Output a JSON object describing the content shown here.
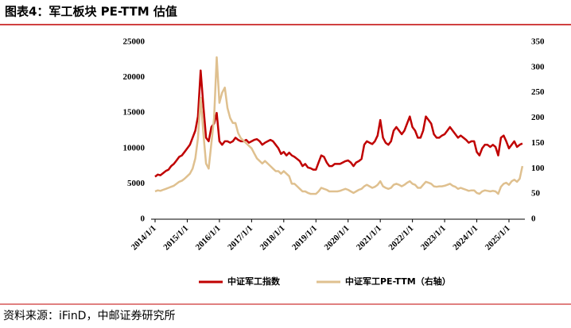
{
  "chart_data": {
    "type": "line",
    "title": "图表4：军工板块 PE-TTM 估值",
    "source": "资料来源：iFinD，中邮证券研究所",
    "x": [
      "2014/1/1",
      "2014/2/1",
      "2014/3/1",
      "2014/4/1",
      "2014/5/1",
      "2014/6/1",
      "2014/7/1",
      "2014/8/1",
      "2014/9/1",
      "2014/10/1",
      "2014/11/1",
      "2014/12/1",
      "2015/1/1",
      "2015/2/1",
      "2015/3/1",
      "2015/4/1",
      "2015/5/1",
      "2015/6/1",
      "2015/7/1",
      "2015/8/1",
      "2015/9/1",
      "2015/10/1",
      "2015/11/1",
      "2015/12/1",
      "2016/1/1",
      "2016/2/1",
      "2016/3/1",
      "2016/4/1",
      "2016/5/1",
      "2016/6/1",
      "2016/7/1",
      "2016/8/1",
      "2016/9/1",
      "2016/10/1",
      "2016/11/1",
      "2016/12/1",
      "2017/1/1",
      "2017/2/1",
      "2017/3/1",
      "2017/4/1",
      "2017/5/1",
      "2017/6/1",
      "2017/7/1",
      "2017/8/1",
      "2017/9/1",
      "2017/10/1",
      "2017/11/1",
      "2017/12/1",
      "2018/1/1",
      "2018/2/1",
      "2018/3/1",
      "2018/4/1",
      "2018/5/1",
      "2018/6/1",
      "2018/7/1",
      "2018/8/1",
      "2018/9/1",
      "2018/10/1",
      "2018/11/1",
      "2018/12/1",
      "2019/1/1",
      "2019/2/1",
      "2019/3/1",
      "2019/4/1",
      "2019/5/1",
      "2019/6/1",
      "2019/7/1",
      "2019/8/1",
      "2019/9/1",
      "2019/10/1",
      "2019/11/1",
      "2019/12/1",
      "2020/1/1",
      "2020/2/1",
      "2020/3/1",
      "2020/4/1",
      "2020/5/1",
      "2020/6/1",
      "2020/7/1",
      "2020/8/1",
      "2020/9/1",
      "2020/10/1",
      "2020/11/1",
      "2020/12/1",
      "2021/1/1",
      "2021/2/1",
      "2021/3/1",
      "2021/4/1",
      "2021/5/1",
      "2021/6/1",
      "2021/7/1",
      "2021/8/1",
      "2021/9/1",
      "2021/10/1",
      "2021/11/1",
      "2021/12/1",
      "2022/1/1",
      "2022/2/1",
      "2022/3/1",
      "2022/4/1",
      "2022/5/1",
      "2022/6/1",
      "2022/7/1",
      "2022/8/1",
      "2022/9/1",
      "2022/10/1",
      "2022/11/1",
      "2022/12/1",
      "2023/1/1",
      "2023/2/1",
      "2023/3/1",
      "2023/4/1",
      "2023/5/1",
      "2023/6/1",
      "2023/7/1",
      "2023/8/1",
      "2023/9/1",
      "2023/10/1",
      "2023/11/1",
      "2023/12/1",
      "2024/1/1",
      "2024/2/1",
      "2024/3/1",
      "2024/4/1",
      "2024/5/1",
      "2024/6/1",
      "2024/7/1",
      "2024/8/1",
      "2024/9/1",
      "2024/10/1",
      "2024/11/1",
      "2024/12/1",
      "2025/1/1",
      "2025/2/1",
      "2025/3/1",
      "2025/4/1",
      "2025/5/1",
      "2025/6/1"
    ],
    "series": [
      {
        "name": "中证军工指数",
        "color": "#c00000",
        "axis": "y",
        "values": [
          6000,
          6300,
          6200,
          6500,
          6800,
          7000,
          7500,
          7800,
          8300,
          8800,
          9000,
          9500,
          10000,
          10500,
          11500,
          12500,
          14500,
          21000,
          16000,
          11500,
          11000,
          13000,
          13500,
          15000,
          11000,
          10500,
          11000,
          11000,
          10800,
          11000,
          11500,
          11200,
          11000,
          11000,
          11200,
          10800,
          11000,
          11200,
          11300,
          11000,
          10500,
          10800,
          11000,
          11200,
          11000,
          10500,
          10000,
          9200,
          9500,
          9000,
          9400,
          9000,
          8800,
          8500,
          8200,
          7500,
          7800,
          7300,
          7200,
          7000,
          7000,
          8000,
          9000,
          8800,
          8000,
          7500,
          7500,
          7800,
          7800,
          7800,
          8000,
          8200,
          8300,
          8000,
          7500,
          8000,
          8200,
          8500,
          10500,
          11000,
          10800,
          10600,
          11000,
          11800,
          14000,
          11500,
          10800,
          10500,
          11000,
          12500,
          13000,
          12500,
          12000,
          12500,
          13500,
          14500,
          13000,
          12500,
          11500,
          11500,
          12500,
          14500,
          14000,
          13500,
          12000,
          11500,
          11500,
          11800,
          12000,
          12500,
          13000,
          12500,
          12000,
          11500,
          11800,
          11500,
          11200,
          10800,
          11000,
          11000,
          9500,
          9000,
          10000,
          10500,
          10500,
          10200,
          10500,
          10200,
          9000,
          11500,
          11800,
          11000,
          10000,
          10500,
          11000,
          10200,
          10500,
          10700
        ]
      },
      {
        "name": "中证军工PE-TTM（右轴）",
        "color": "#dfc08f",
        "axis": "y2",
        "values": [
          55,
          57,
          56,
          58,
          60,
          62,
          64,
          66,
          70,
          74,
          76,
          80,
          85,
          90,
          100,
          120,
          160,
          240,
          170,
          110,
          100,
          150,
          200,
          320,
          230,
          250,
          260,
          220,
          200,
          190,
          190,
          170,
          160,
          155,
          150,
          145,
          140,
          130,
          120,
          115,
          110,
          115,
          110,
          105,
          100,
          95,
          95,
          90,
          95,
          90,
          85,
          70,
          70,
          65,
          60,
          55,
          55,
          52,
          50,
          50,
          50,
          55,
          62,
          60,
          58,
          55,
          55,
          55,
          55,
          56,
          58,
          60,
          58,
          55,
          52,
          55,
          58,
          60,
          65,
          68,
          65,
          62,
          64,
          68,
          75,
          65,
          62,
          60,
          62,
          68,
          70,
          68,
          65,
          68,
          72,
          75,
          70,
          68,
          62,
          62,
          68,
          74,
          72,
          70,
          65,
          64,
          65,
          65,
          66,
          68,
          70,
          66,
          64,
          60,
          62,
          60,
          58,
          56,
          57,
          57,
          52,
          50,
          55,
          57,
          56,
          55,
          56,
          55,
          50,
          64,
          70,
          72,
          68,
          75,
          78,
          74,
          80,
          105
        ]
      }
    ],
    "xticks": [
      "2014/1/1",
      "2015/1/1",
      "2016/1/1",
      "2017/1/1",
      "2018/1/1",
      "2019/1/1",
      "2020/1/1",
      "2021/1/1",
      "2022/1/1",
      "2023/1/1",
      "2024/1/1",
      "2025/1/1"
    ],
    "ylim": [
      0,
      25000
    ],
    "yticks": [
      0,
      5000,
      10000,
      15000,
      20000,
      25000
    ],
    "y2lim": [
      0,
      350
    ],
    "y2ticks": [
      0,
      50,
      100,
      150,
      200,
      250,
      300,
      350
    ]
  }
}
